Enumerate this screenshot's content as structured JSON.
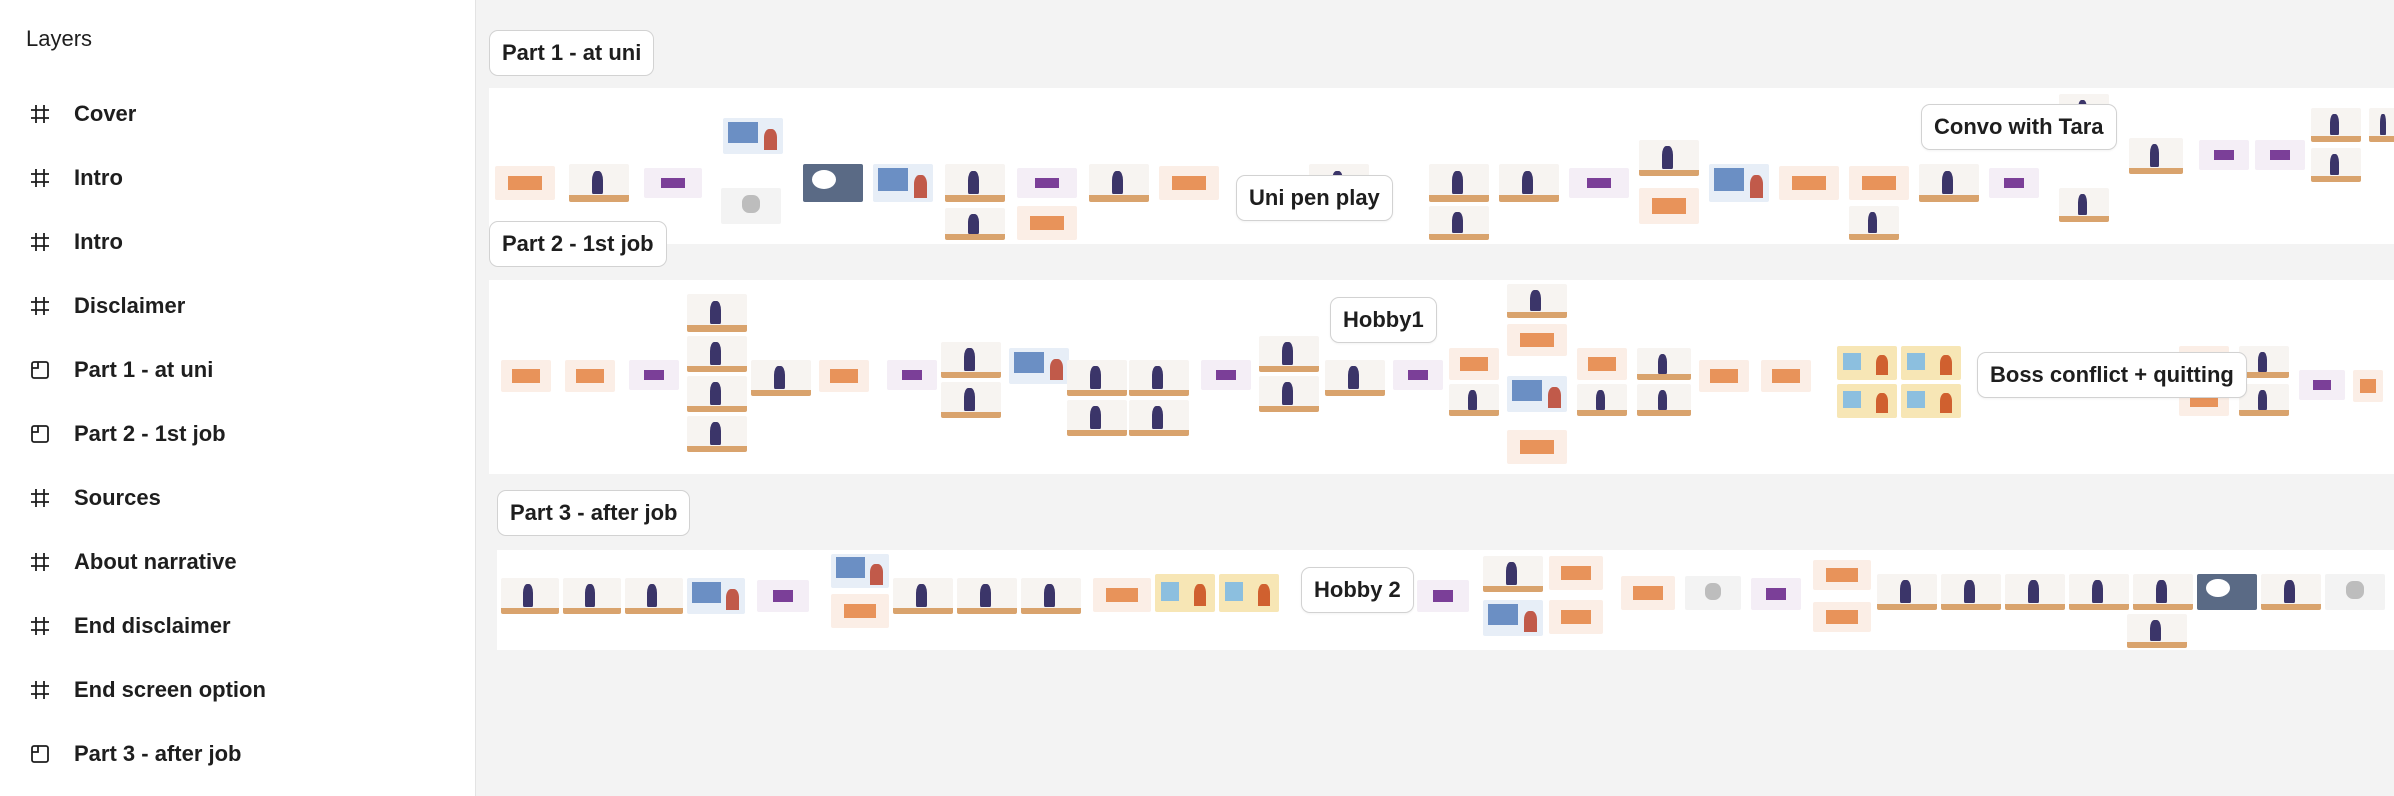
{
  "sidebar": {
    "title": "Layers",
    "items": [
      {
        "label": "Cover",
        "icon": "frame-icon"
      },
      {
        "label": "Intro",
        "icon": "frame-icon"
      },
      {
        "label": "Intro",
        "icon": "frame-icon"
      },
      {
        "label": "Disclaimer",
        "icon": "frame-icon"
      },
      {
        "label": "Part 1 -  at uni",
        "icon": "section-icon"
      },
      {
        "label": "Part 2 - 1st job",
        "icon": "section-icon"
      },
      {
        "label": "Sources",
        "icon": "frame-icon"
      },
      {
        "label": "About narrative",
        "icon": "frame-icon"
      },
      {
        "label": "End disclaimer",
        "icon": "frame-icon"
      },
      {
        "label": "End screen option",
        "icon": "frame-icon"
      },
      {
        "label": "Part 3 - after job",
        "icon": "section-icon"
      }
    ]
  },
  "canvas": {
    "sections": [
      {
        "label": "Part 1 -  at uni"
      },
      {
        "label": "Part 2 - 1st job"
      },
      {
        "label": "Part 3 - after job"
      }
    ],
    "frame_labels": {
      "uni_pen_play": "Uni pen play",
      "convo_with_tara": "Convo with Tara",
      "hobby1": "Hobby1",
      "boss_conflict": "Boss conflict + quitting",
      "hobby2": "Hobby 2"
    }
  },
  "colors": {
    "accent_orange": "#e8935a",
    "accent_purple": "#7b3f98",
    "canvas_bg": "#f3f3f3",
    "section_bg": "#ffffff"
  }
}
